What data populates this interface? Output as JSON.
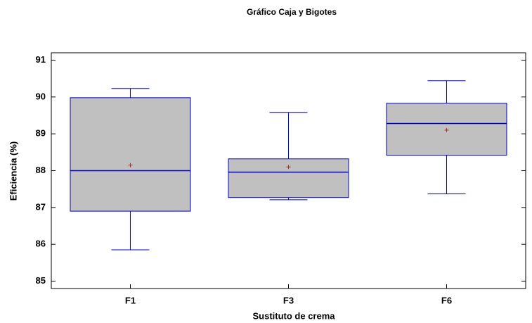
{
  "chart_data": {
    "type": "box",
    "title": "Gráfico Caja y Bigotes",
    "x_label": "Sustituto de crema",
    "y_label": "Eficiencia (%)",
    "categories": [
      "F1",
      "F3",
      "F6"
    ],
    "boxes": [
      {
        "min": 85.85,
        "q1": 86.9,
        "median": 88.0,
        "q3": 89.98,
        "max": 90.23,
        "mean": 88.15
      },
      {
        "min": 87.21,
        "q1": 87.27,
        "median": 87.96,
        "q3": 88.32,
        "max": 89.58,
        "mean": 88.1
      },
      {
        "min": 87.37,
        "q1": 88.42,
        "median": 89.28,
        "q3": 89.83,
        "max": 90.44,
        "mean": 89.1
      }
    ],
    "box_color": "#c0c0c0",
    "line_color": "#0000cc",
    "mean_color": "#a03020",
    "ylim": [
      84.8,
      91.2
    ],
    "yticks": [
      85,
      86,
      87,
      88,
      89,
      90,
      91
    ]
  }
}
